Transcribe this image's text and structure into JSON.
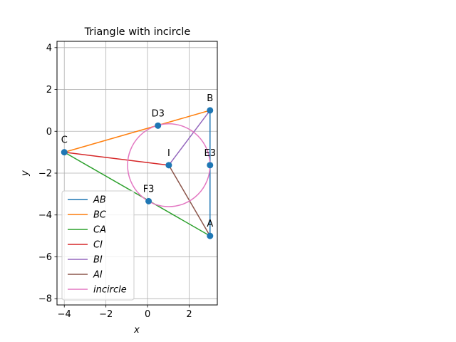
{
  "chart_data": {
    "type": "line",
    "title": "Triangle with incircle",
    "xlabel": "x",
    "ylabel": "y",
    "xlim": [
      -4.35,
      3.35
    ],
    "ylim": [
      -8.3,
      4.3
    ],
    "xticks": [
      -4,
      -2,
      0,
      2
    ],
    "yticks": [
      -8,
      -6,
      -4,
      -2,
      0,
      2,
      4
    ],
    "x_tick_labels": [
      "−4",
      "−2",
      "0",
      "2"
    ],
    "y_tick_labels": [
      "−8",
      "−6",
      "−4",
      "−2",
      "0",
      "2",
      "4"
    ],
    "grid": true,
    "legend_position": "lower-left",
    "series": [
      {
        "name": "AB",
        "color": "#1f77b4",
        "x": [
          3,
          3
        ],
        "y": [
          -5,
          1
        ]
      },
      {
        "name": "BC",
        "color": "#ff7f0e",
        "x": [
          3,
          -4
        ],
        "y": [
          1,
          -1
        ]
      },
      {
        "name": "CA",
        "color": "#2ca02c",
        "x": [
          -4,
          3
        ],
        "y": [
          -1,
          -5
        ]
      },
      {
        "name": "CI",
        "color": "#d62728",
        "x": [
          -4,
          1.02
        ],
        "y": [
          -1,
          -1.62
        ]
      },
      {
        "name": "BI",
        "color": "#9467bd",
        "x": [
          3,
          1.02
        ],
        "y": [
          1,
          -1.62
        ]
      },
      {
        "name": "AI",
        "color": "#8c564b",
        "x": [
          3,
          1.02
        ],
        "y": [
          -5,
          -1.62
        ]
      },
      {
        "name": "incircle",
        "color": "#e377c2",
        "circle": {
          "cx": 1.02,
          "cy": -1.62,
          "r": 1.98
        }
      }
    ],
    "points": [
      {
        "label": "A",
        "x": 3,
        "y": -5
      },
      {
        "label": "B",
        "x": 3,
        "y": 1
      },
      {
        "label": "C",
        "x": -4,
        "y": -1
      },
      {
        "label": "I",
        "x": 1.02,
        "y": -1.62
      },
      {
        "label": "D3",
        "x": 0.5,
        "y": 0.27
      },
      {
        "label": "E3",
        "x": 3,
        "y": -1.62
      },
      {
        "label": "F3",
        "x": 0.05,
        "y": -3.34
      }
    ],
    "point_color": "#1f77b4"
  }
}
